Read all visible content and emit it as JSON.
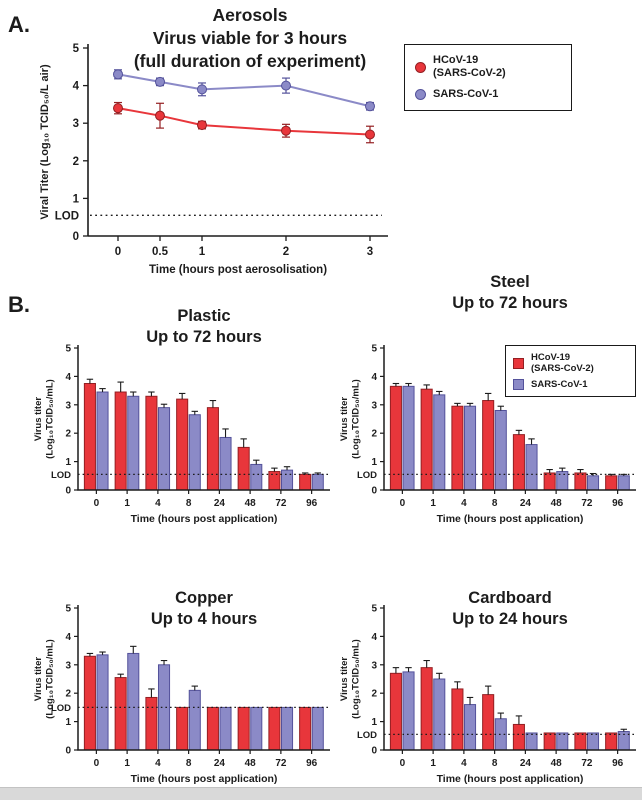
{
  "panel_a_label": "A.",
  "panel_b_label": "B.",
  "colors": {
    "axis": "#1c1c1c",
    "sars2_fill": "#e8363b",
    "sars2_stroke": "#941f22",
    "sars1_fill": "#8b8ac7",
    "sars1_stroke": "#54529b"
  },
  "legend": {
    "hcov_line1": "HCoV-19",
    "hcov_line2": "(SARS-CoV-2)",
    "sars1": "SARS-CoV-1"
  },
  "chart_data": [
    {
      "id": "aerosols",
      "type": "line",
      "title_lines": [
        "Aerosols",
        "Virus viable for 3 hours",
        "(full duration of experiment)"
      ],
      "xlabel": "Time (hours post aerosolisation)",
      "ylabel": "Viral Titer (Log₁₀ TCID₅₀/L air)",
      "x_ticks": [
        "0",
        "0.5",
        "1",
        "2",
        "3"
      ],
      "x_positions": [
        0,
        0.5,
        1,
        2,
        3
      ],
      "y_ticks": [
        0,
        1,
        2,
        3,
        4,
        5
      ],
      "ylim": [
        0,
        5
      ],
      "lod": 0.55,
      "lod_label": "LOD",
      "legend_position": "right",
      "grid": false,
      "series": [
        {
          "key": "sars2",
          "name": "HCoV-19 (SARS-CoV-2)",
          "values": [
            3.4,
            3.2,
            2.95,
            2.8,
            2.7
          ],
          "errors": [
            0.15,
            0.33,
            0.1,
            0.17,
            0.22
          ]
        },
        {
          "key": "sars1",
          "name": "SARS-CoV-1",
          "values": [
            4.3,
            4.1,
            3.9,
            4.0,
            3.45
          ],
          "errors": [
            0.12,
            0.1,
            0.17,
            0.2,
            0.1
          ]
        }
      ]
    },
    {
      "id": "plastic",
      "type": "bar",
      "title_lines": [
        "Plastic",
        "Up to 72 hours"
      ],
      "xlabel": "Time (hours post application)",
      "ylabel_lines": [
        "Virus titer",
        "(Log₁₀TCID₅₀/mL)"
      ],
      "categories": [
        "0",
        "1",
        "4",
        "8",
        "24",
        "48",
        "72",
        "96"
      ],
      "y_ticks": [
        0,
        1,
        2,
        3,
        4,
        5
      ],
      "ylim": [
        0,
        5
      ],
      "lod": 0.55,
      "lod_label": "LOD",
      "grid": false,
      "series": [
        {
          "key": "sars2",
          "name": "HCoV-19 (SARS-CoV-2)",
          "values": [
            3.75,
            3.45,
            3.3,
            3.2,
            2.9,
            1.5,
            0.65,
            0.55
          ],
          "errors": [
            0.15,
            0.35,
            0.15,
            0.2,
            0.25,
            0.3,
            0.12,
            0.05
          ]
        },
        {
          "key": "sars1",
          "name": "SARS-CoV-1",
          "values": [
            3.45,
            3.3,
            2.9,
            2.65,
            1.85,
            0.9,
            0.7,
            0.55
          ],
          "errors": [
            0.12,
            0.15,
            0.12,
            0.12,
            0.3,
            0.15,
            0.12,
            0.05
          ]
        }
      ]
    },
    {
      "id": "steel",
      "type": "bar",
      "title_lines": [
        "Steel",
        "Up to 72 hours"
      ],
      "xlabel": "Time (hours post application)",
      "ylabel_lines": [
        "Virus titer",
        "(Log₁₀TCID₅₀/mL)"
      ],
      "categories": [
        "0",
        "1",
        "4",
        "8",
        "24",
        "48",
        "72",
        "96"
      ],
      "y_ticks": [
        0,
        1,
        2,
        3,
        4,
        5
      ],
      "ylim": [
        0,
        5
      ],
      "lod": 0.55,
      "lod_label": "LOD",
      "legend_position": "top-right",
      "grid": false,
      "series": [
        {
          "key": "sars2",
          "name": "HCoV-19 (SARS-CoV-2)",
          "values": [
            3.65,
            3.55,
            2.95,
            3.15,
            1.95,
            0.6,
            0.6,
            0.5
          ],
          "errors": [
            0.1,
            0.15,
            0.1,
            0.25,
            0.15,
            0.12,
            0.12,
            0.05
          ]
        },
        {
          "key": "sars1",
          "name": "SARS-CoV-1",
          "values": [
            3.65,
            3.35,
            2.95,
            2.8,
            1.6,
            0.65,
            0.5,
            0.5
          ],
          "errors": [
            0.1,
            0.12,
            0.1,
            0.15,
            0.2,
            0.12,
            0.08,
            0.05
          ]
        }
      ]
    },
    {
      "id": "copper",
      "type": "bar",
      "title_lines": [
        "Copper",
        "Up to 4 hours"
      ],
      "xlabel": "Time (hours post application)",
      "ylabel_lines": [
        "Virus titer",
        "(Log₁₀TCID₅₀/mL)"
      ],
      "categories": [
        "0",
        "1",
        "4",
        "8",
        "24",
        "48",
        "72",
        "96"
      ],
      "y_ticks": [
        0,
        1,
        2,
        3,
        4,
        5
      ],
      "ylim": [
        0,
        5
      ],
      "lod": 1.5,
      "lod_label": "LOD",
      "grid": false,
      "series": [
        {
          "key": "sars2",
          "name": "HCoV-19 (SARS-CoV-2)",
          "values": [
            3.3,
            2.55,
            1.85,
            1.5,
            1.5,
            1.5,
            1.5,
            1.5
          ],
          "errors": [
            0.1,
            0.12,
            0.3,
            0,
            0,
            0,
            0,
            0
          ]
        },
        {
          "key": "sars1",
          "name": "SARS-CoV-1",
          "values": [
            3.35,
            3.4,
            3.0,
            2.1,
            1.5,
            1.5,
            1.5,
            1.5
          ],
          "errors": [
            0.1,
            0.25,
            0.15,
            0.15,
            0,
            0,
            0,
            0
          ]
        }
      ]
    },
    {
      "id": "cardboard",
      "type": "bar",
      "title_lines": [
        "Cardboard",
        "Up to 24 hours"
      ],
      "xlabel": "Time (hours post application)",
      "ylabel_lines": [
        "Virus titer",
        "(Log₁₀TCID₅₀/mL)"
      ],
      "categories": [
        "0",
        "1",
        "4",
        "8",
        "24",
        "48",
        "72",
        "96"
      ],
      "y_ticks": [
        0,
        1,
        2,
        3,
        4,
        5
      ],
      "ylim": [
        0,
        5
      ],
      "lod": 0.55,
      "lod_label": "LOD",
      "grid": false,
      "series": [
        {
          "key": "sars2",
          "name": "HCoV-19 (SARS-CoV-2)",
          "values": [
            2.7,
            2.9,
            2.15,
            1.95,
            0.9,
            0.6,
            0.6,
            0.6
          ],
          "errors": [
            0.2,
            0.25,
            0.25,
            0.3,
            0.3,
            0,
            0,
            0
          ]
        },
        {
          "key": "sars1",
          "name": "SARS-CoV-1",
          "values": [
            2.75,
            2.5,
            1.6,
            1.1,
            0.6,
            0.6,
            0.6,
            0.65
          ],
          "errors": [
            0.15,
            0.2,
            0.25,
            0.2,
            0,
            0,
            0,
            0.08
          ]
        }
      ]
    }
  ]
}
